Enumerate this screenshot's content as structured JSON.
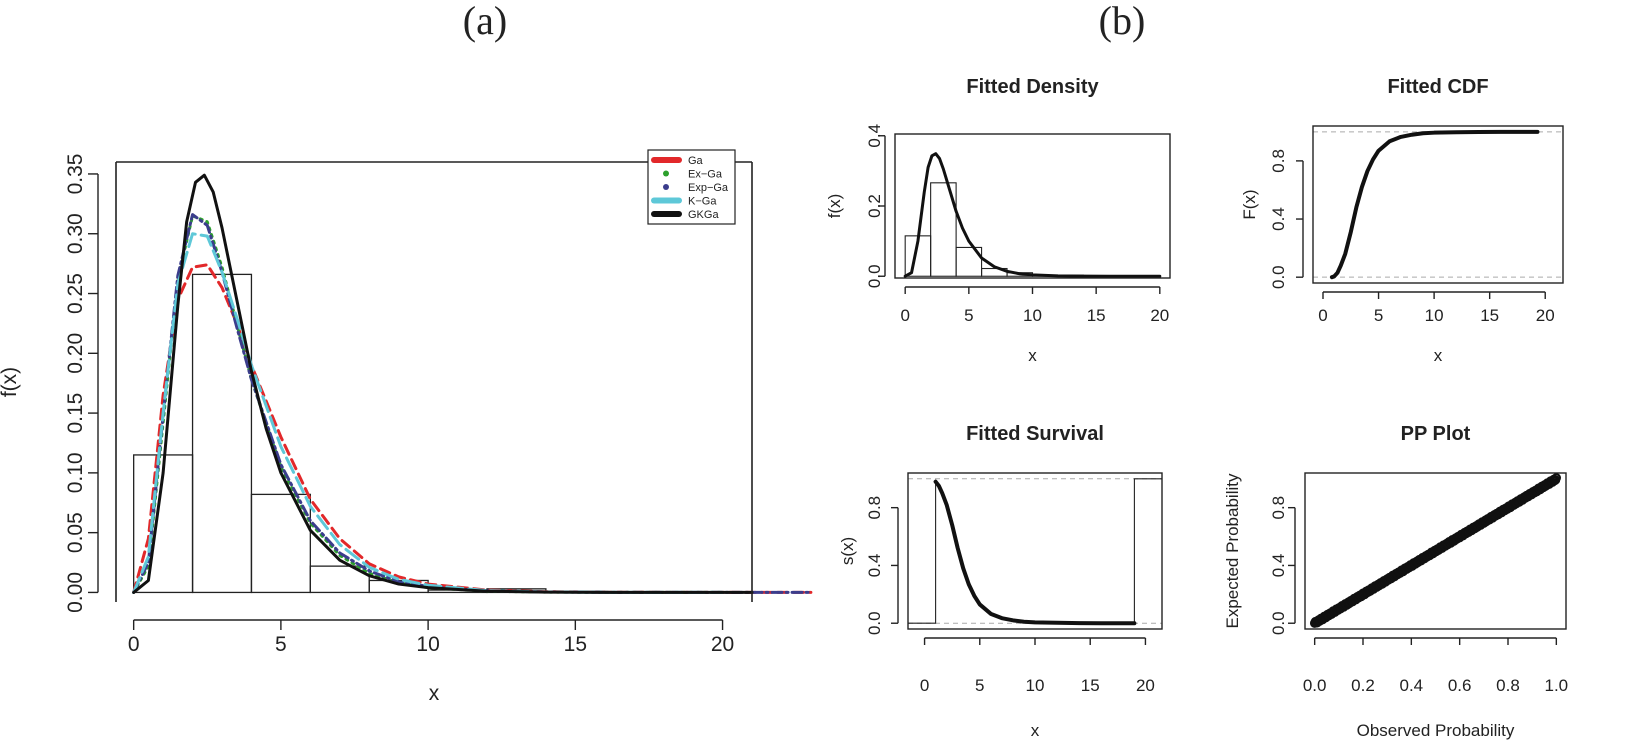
{
  "panel_labels": [
    "(a)",
    "(b)"
  ],
  "chart_data": [
    {
      "id": "main",
      "type": "line",
      "xlabel": "x",
      "ylabel": "f(x)",
      "xlim": [
        -0.6,
        21
      ],
      "ylim": [
        -0.008,
        0.36
      ],
      "xticks": [
        0,
        5,
        10,
        15,
        20
      ],
      "xtick_labels": [
        "0",
        "5",
        "10",
        "15",
        "20"
      ],
      "yticks": [
        0,
        0.05,
        0.1,
        0.15,
        0.2,
        0.25,
        0.3,
        0.35
      ],
      "ytick_labels": [
        "0.00",
        "0.05",
        "0.10",
        "0.15",
        "0.20",
        "0.25",
        "0.30",
        "0.35"
      ],
      "histogram": {
        "bin_edges": [
          0,
          2,
          4,
          6,
          8,
          10,
          12,
          14,
          16,
          18,
          20
        ],
        "densities": [
          0.115,
          0.266,
          0.082,
          0.022,
          0.01,
          0.002,
          0.003,
          0.001,
          0.0005,
          0.0005
        ]
      },
      "legend": {
        "position": "top-right",
        "entries": [
          "Ga",
          "Ex−Ga",
          "Exp−Ga",
          "K−Ga",
          "GKGa"
        ]
      },
      "series": [
        {
          "name": "Ga",
          "color": "#e2282a",
          "dash": "dashed",
          "x": [
            0,
            0.5,
            1,
            1.5,
            2,
            2.5,
            3,
            3.5,
            4,
            5,
            6,
            7,
            8,
            9,
            10,
            12,
            14,
            16,
            18,
            20,
            22,
            23
          ],
          "y": [
            0,
            0.045,
            0.165,
            0.245,
            0.272,
            0.274,
            0.255,
            0.225,
            0.19,
            0.13,
            0.078,
            0.045,
            0.024,
            0.013,
            0.007,
            0.002,
            0.0006,
            0.0002,
            0.0001,
            0,
            0,
            0
          ]
        },
        {
          "name": "Ex−Ga",
          "color": "#2ca02c",
          "dash": "dotted",
          "x": [
            0,
            0.5,
            1,
            1.5,
            2,
            2.5,
            3,
            3.5,
            4,
            5,
            6,
            7,
            8,
            9,
            10,
            12,
            14,
            16,
            18,
            20
          ],
          "y": [
            0,
            0.022,
            0.142,
            0.262,
            0.315,
            0.31,
            0.272,
            0.225,
            0.178,
            0.105,
            0.058,
            0.031,
            0.016,
            0.008,
            0.004,
            0.001,
            0.0003,
            0.0001,
            0,
            0
          ]
        },
        {
          "name": "Exp−Ga",
          "color": "#3b3d8c",
          "dash": "dashdot",
          "x": [
            0,
            0.5,
            1,
            1.5,
            2,
            2.5,
            3,
            3.5,
            4,
            5,
            6,
            7,
            8,
            9,
            10,
            12,
            14,
            16,
            18,
            20,
            22,
            23
          ],
          "y": [
            0,
            0.025,
            0.148,
            0.265,
            0.316,
            0.307,
            0.268,
            0.222,
            0.178,
            0.107,
            0.06,
            0.033,
            0.018,
            0.009,
            0.005,
            0.0013,
            0.0004,
            0.0001,
            0,
            0,
            0,
            0
          ]
        },
        {
          "name": "K−Ga",
          "color": "#5ec8d8",
          "dash": "longdash",
          "x": [
            0,
            0.5,
            1,
            1.5,
            2,
            2.5,
            3,
            3.5,
            4,
            5,
            6,
            7,
            8,
            9,
            10,
            12,
            14,
            16,
            18,
            20
          ],
          "y": [
            0,
            0.03,
            0.15,
            0.258,
            0.3,
            0.298,
            0.268,
            0.23,
            0.19,
            0.122,
            0.072,
            0.04,
            0.021,
            0.011,
            0.006,
            0.0015,
            0.0004,
            0.0001,
            0,
            0
          ]
        },
        {
          "name": "GKGa",
          "color": "#111111",
          "dash": "solid",
          "x": [
            0,
            0.5,
            1,
            1.5,
            1.8,
            2.1,
            2.4,
            2.7,
            3,
            3.5,
            4,
            4.5,
            5,
            6,
            7,
            8,
            9,
            10,
            12,
            14,
            16,
            18,
            20,
            21
          ],
          "y": [
            0,
            0.01,
            0.1,
            0.24,
            0.31,
            0.343,
            0.349,
            0.335,
            0.305,
            0.245,
            0.185,
            0.137,
            0.1,
            0.052,
            0.027,
            0.014,
            0.007,
            0.004,
            0.001,
            0.0003,
            0.0001,
            0,
            0,
            0
          ]
        }
      ]
    },
    {
      "id": "density",
      "type": "line",
      "title": "Fitted Density",
      "xlabel": "x",
      "ylabel": "f(x)",
      "xlim": [
        -0.8,
        20.8
      ],
      "ylim": [
        -0.005,
        0.405
      ],
      "xticks": [
        0,
        5,
        10,
        15,
        20
      ],
      "xtick_labels": [
        "0",
        "5",
        "10",
        "15",
        "20"
      ],
      "yticks": [
        0,
        0.2,
        0.4
      ],
      "ytick_labels": [
        "0.0",
        "0.2",
        "0.4"
      ],
      "histogram": {
        "bin_edges": [
          0,
          2,
          4,
          6,
          8,
          10,
          12,
          14,
          16,
          18,
          20
        ],
        "densities": [
          0.115,
          0.266,
          0.082,
          0.022,
          0.01,
          0.002,
          0.003,
          0.001,
          0.0005,
          0.0005
        ]
      },
      "series": [
        {
          "color": "#111111",
          "x": [
            0,
            0.5,
            1,
            1.5,
            1.8,
            2.1,
            2.4,
            2.7,
            3,
            3.5,
            4,
            4.5,
            5,
            6,
            7,
            8,
            9,
            10,
            12,
            14,
            16,
            18,
            20
          ],
          "y": [
            0,
            0.01,
            0.1,
            0.24,
            0.31,
            0.343,
            0.349,
            0.335,
            0.305,
            0.245,
            0.185,
            0.137,
            0.1,
            0.052,
            0.027,
            0.014,
            0.007,
            0.004,
            0.001,
            0.0003,
            0.0001,
            0,
            0
          ]
        }
      ]
    },
    {
      "id": "cdf",
      "type": "line",
      "title": "Fitted CDF",
      "xlabel": "x",
      "ylabel": "F(x)",
      "xlim": [
        -0.9,
        21.6
      ],
      "ylim": [
        -0.04,
        1.04
      ],
      "xticks": [
        0,
        5,
        10,
        15,
        20
      ],
      "xtick_labels": [
        "0",
        "5",
        "10",
        "15",
        "20"
      ],
      "yticks": [
        0,
        0.4,
        0.8
      ],
      "ytick_labels": [
        "0.0",
        "0.4",
        "0.8"
      ],
      "reference_lines": [
        0,
        1
      ],
      "series": [
        {
          "color": "#111111",
          "x": [
            0.8,
            1,
            1.3,
            1.6,
            2,
            2.5,
            3,
            3.5,
            4,
            4.5,
            5,
            6,
            7,
            8,
            9,
            10,
            12,
            14,
            16,
            19.3
          ],
          "y": [
            0,
            0.005,
            0.03,
            0.08,
            0.16,
            0.31,
            0.48,
            0.62,
            0.73,
            0.81,
            0.87,
            0.935,
            0.965,
            0.98,
            0.99,
            0.994,
            0.997,
            0.999,
            1.0,
            1.0
          ]
        }
      ]
    },
    {
      "id": "survival",
      "type": "line",
      "title": "Fitted Survival",
      "xlabel": "x",
      "ylabel": "s(x)",
      "xlim": [
        -1.5,
        21.5
      ],
      "ylim": [
        -0.04,
        1.04
      ],
      "xticks": [
        0,
        5,
        10,
        15,
        20
      ],
      "xtick_labels": [
        "0",
        "5",
        "10",
        "15",
        "20"
      ],
      "yticks": [
        0,
        0.4,
        0.8
      ],
      "ytick_labels": [
        "0.0",
        "0.4",
        "0.8"
      ],
      "reference_lines": [
        0,
        1
      ],
      "series": [
        {
          "color": "#111111",
          "x": [
            1,
            1.3,
            1.6,
            2,
            2.5,
            3,
            3.5,
            4,
            4.5,
            5,
            6,
            7,
            8,
            9,
            10,
            12,
            14,
            16,
            19
          ],
          "y": [
            0.98,
            0.95,
            0.9,
            0.82,
            0.68,
            0.52,
            0.38,
            0.27,
            0.19,
            0.13,
            0.065,
            0.035,
            0.02,
            0.01,
            0.006,
            0.003,
            0.001,
            0,
            0
          ]
        }
      ],
      "steps": [
        {
          "x": [
            -1.5,
            1,
            1
          ],
          "y": [
            0,
            0,
            0.98
          ]
        },
        {
          "x": [
            19,
            19,
            21.5
          ],
          "y": [
            0,
            1,
            1
          ]
        }
      ]
    },
    {
      "id": "pp",
      "type": "scatter",
      "title": "PP Plot",
      "xlabel": "Observed Probability",
      "ylabel": "Expected Probability",
      "xlim": [
        -0.04,
        1.04
      ],
      "ylim": [
        -0.04,
        1.04
      ],
      "xticks": [
        0,
        0.2,
        0.4,
        0.6,
        0.8,
        1.0
      ],
      "xtick_labels": [
        "0.0",
        "0.2",
        "0.4",
        "0.6",
        "0.8",
        "1.0"
      ],
      "yticks": [
        0,
        0.4,
        0.8
      ],
      "ytick_labels": [
        "0.0",
        "0.4",
        "0.8"
      ],
      "series": [
        {
          "color": "#111111",
          "x": [
            0,
            1
          ],
          "y": [
            0,
            1
          ]
        }
      ]
    }
  ]
}
